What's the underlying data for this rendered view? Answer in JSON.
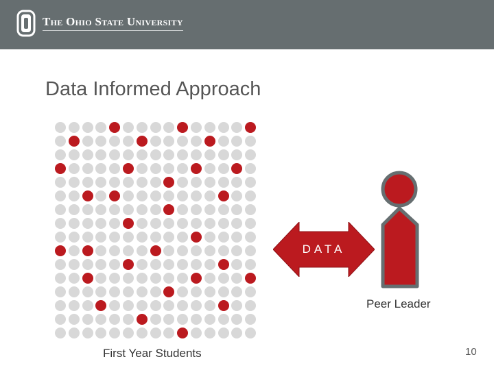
{
  "header": {
    "wordmark": "The Ohio State University"
  },
  "slide": {
    "title": "Data Informed Approach",
    "arrow_label": "DATA",
    "peer_leader_label": "Peer Leader",
    "students_label": "First Year Students",
    "page_number": "10"
  },
  "dot_grid": {
    "rows": 16,
    "cols": 15,
    "red_cells": [
      [
        0,
        4
      ],
      [
        0,
        9
      ],
      [
        0,
        14
      ],
      [
        1,
        1
      ],
      [
        1,
        6
      ],
      [
        1,
        11
      ],
      [
        3,
        0
      ],
      [
        3,
        5
      ],
      [
        3,
        10
      ],
      [
        3,
        13
      ],
      [
        4,
        8
      ],
      [
        5,
        2
      ],
      [
        5,
        4
      ],
      [
        5,
        12
      ],
      [
        6,
        8
      ],
      [
        7,
        5
      ],
      [
        8,
        10
      ],
      [
        9,
        0
      ],
      [
        9,
        2
      ],
      [
        9,
        7
      ],
      [
        10,
        5
      ],
      [
        10,
        12
      ],
      [
        11,
        2
      ],
      [
        11,
        10
      ],
      [
        11,
        14
      ],
      [
        12,
        8
      ],
      [
        13,
        3
      ],
      [
        13,
        12
      ],
      [
        14,
        6
      ],
      [
        15,
        9
      ]
    ]
  },
  "colors": {
    "header_bg": "#666e70",
    "scarlet": "#bb1a1f",
    "gray_dot": "#d8d8d8",
    "outline_gray": "#666e70"
  }
}
